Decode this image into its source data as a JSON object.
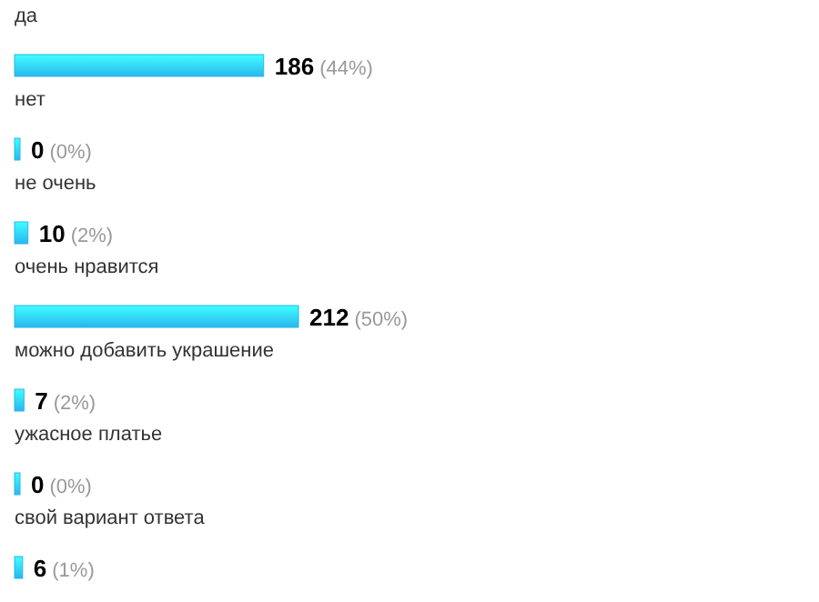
{
  "chart_data": {
    "type": "bar",
    "orientation": "horizontal",
    "categories": [
      "да",
      "нет",
      "не очень",
      "очень нравится",
      "можно добавить украшение",
      "ужасное платье",
      "свой вариант ответа"
    ],
    "values": [
      186,
      0,
      10,
      212,
      7,
      0,
      6
    ],
    "color": "#29b6ee",
    "value_labels": [
      "186 (44%)",
      "0 (0%)",
      "10 (2%)",
      "212 (50%)",
      "7 (2%)",
      "0 (0%)",
      "6 (1%)"
    ]
  }
}
